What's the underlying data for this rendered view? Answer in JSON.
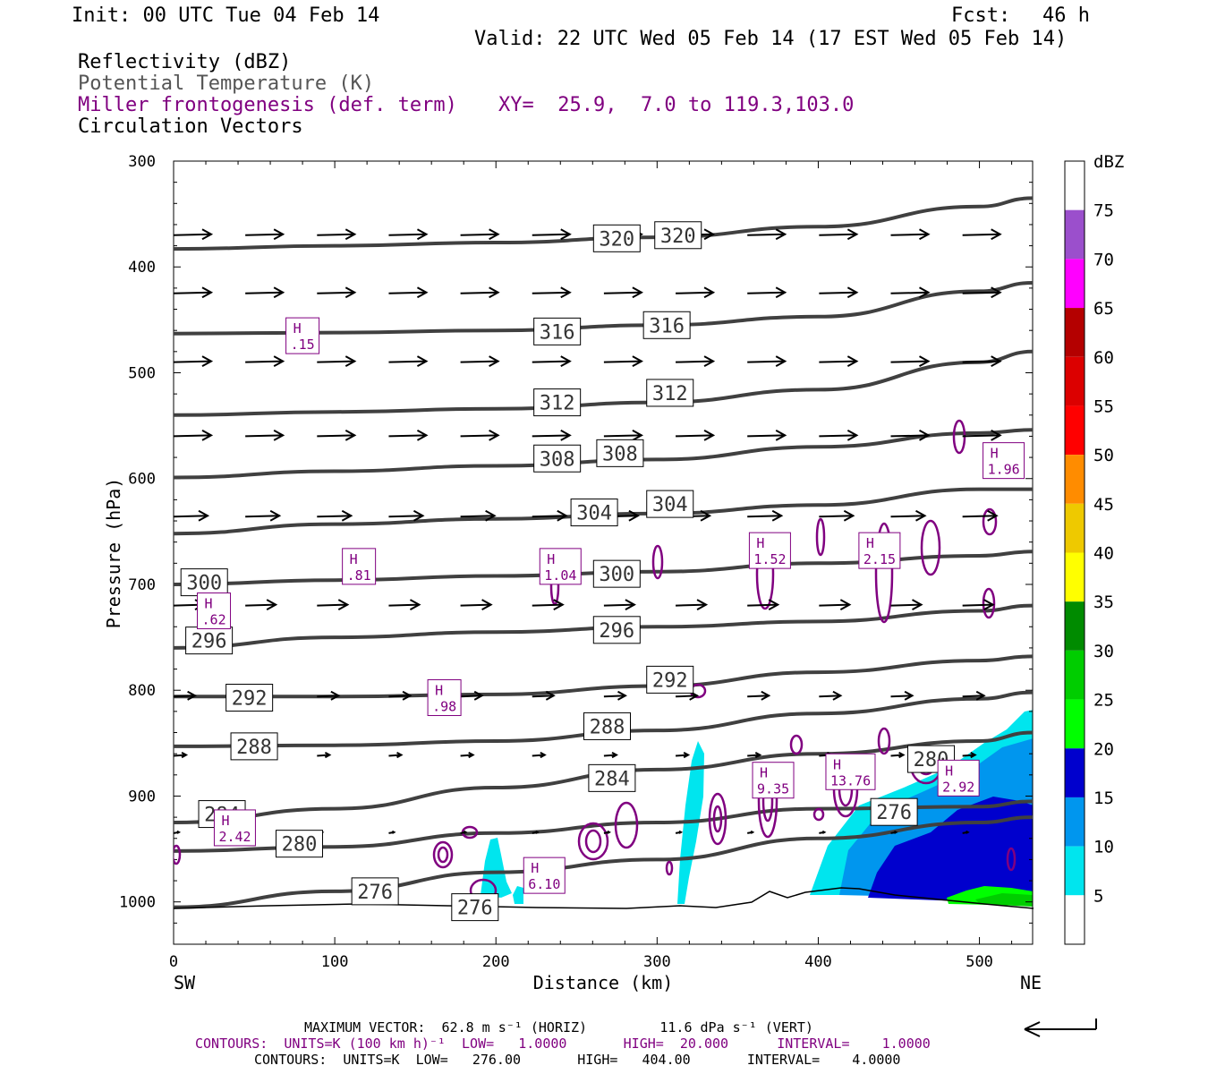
{
  "header": {
    "init": "Init: 00 UTC Tue 04 Feb 14",
    "fcst_label": "Fcst:",
    "fcst_value": "46 h",
    "valid": "Valid: 22 UTC Wed 05 Feb 14 (17 EST Wed 05 Feb 14)"
  },
  "fields": {
    "reflectivity": "Reflectivity (dBZ)",
    "theta": "Potential Temperature (K)",
    "miller": "Miller frontogenesis (def. term)",
    "xy": "XY=  25.9,  7.0 to 119.3,103.0",
    "vectors": "Circulation Vectors"
  },
  "colors": {
    "theta": "#404040",
    "miller": "#800080",
    "vectors": "#000000"
  },
  "chart_data": {
    "type": "cross-section",
    "xlabel": "Distance (km)",
    "ylabel": "Pressure (hPa)",
    "xlim": [
      0,
      533
    ],
    "ylim": [
      1040,
      300
    ],
    "xticks": [
      0,
      100,
      200,
      300,
      400,
      500
    ],
    "yticks": [
      300,
      400,
      500,
      600,
      700,
      800,
      900,
      1000
    ],
    "x_end_labels": {
      "left": "SW",
      "right": "NE"
    },
    "colorbar": {
      "title": "dBZ",
      "levels": [
        5,
        10,
        15,
        20,
        25,
        30,
        35,
        40,
        45,
        50,
        55,
        60,
        65,
        70,
        75
      ],
      "colors": [
        "#ffffff",
        "#00e5ee",
        "#0096ee",
        "#0000cd",
        "#00ff00",
        "#00cd00",
        "#008b00",
        "#ffff00",
        "#eec900",
        "#ff8c00",
        "#ff0000",
        "#dc0000",
        "#b40000",
        "#ff00ff",
        "#9b4fcc",
        "#ffffff"
      ]
    },
    "theta_lines": [
      {
        "label": "320",
        "pts": [
          [
            0,
            383
          ],
          [
            100,
            380
          ],
          [
            200,
            377
          ],
          [
            300,
            372
          ],
          [
            400,
            362
          ],
          [
            500,
            343
          ],
          [
            533,
            335
          ]
        ]
      },
      {
        "label": "316",
        "pts": [
          [
            0,
            463
          ],
          [
            100,
            462
          ],
          [
            200,
            460
          ],
          [
            300,
            455
          ],
          [
            400,
            447
          ],
          [
            500,
            423
          ],
          [
            533,
            415
          ]
        ]
      },
      {
        "label": "312",
        "pts": [
          [
            0,
            540
          ],
          [
            100,
            537
          ],
          [
            200,
            534
          ],
          [
            300,
            528
          ],
          [
            400,
            516
          ],
          [
            500,
            490
          ],
          [
            533,
            480
          ]
        ]
      },
      {
        "label": "308",
        "pts": [
          [
            0,
            599
          ],
          [
            100,
            593
          ],
          [
            200,
            588
          ],
          [
            300,
            582
          ],
          [
            400,
            570
          ],
          [
            500,
            557
          ],
          [
            533,
            554
          ]
        ]
      },
      {
        "label": "304",
        "pts": [
          [
            0,
            652
          ],
          [
            100,
            643
          ],
          [
            200,
            638
          ],
          [
            300,
            633
          ],
          [
            400,
            625
          ],
          [
            500,
            610
          ],
          [
            533,
            610
          ]
        ]
      },
      {
        "label": "300",
        "pts": [
          [
            0,
            700
          ],
          [
            100,
            696
          ],
          [
            200,
            692
          ],
          [
            300,
            688
          ],
          [
            400,
            680
          ],
          [
            500,
            673
          ],
          [
            533,
            669
          ]
        ]
      },
      {
        "label": "296",
        "pts": [
          [
            0,
            760
          ],
          [
            100,
            750
          ],
          [
            200,
            745
          ],
          [
            300,
            740
          ],
          [
            400,
            735
          ],
          [
            500,
            725
          ],
          [
            533,
            720
          ]
        ]
      },
      {
        "label": "292",
        "pts": [
          [
            0,
            806
          ],
          [
            100,
            806
          ],
          [
            200,
            804
          ],
          [
            300,
            796
          ],
          [
            400,
            783
          ],
          [
            500,
            772
          ],
          [
            533,
            768
          ]
        ]
      },
      {
        "label": "288",
        "pts": [
          [
            0,
            853
          ],
          [
            100,
            852
          ],
          [
            200,
            848
          ],
          [
            300,
            838
          ],
          [
            400,
            822
          ],
          [
            500,
            808
          ],
          [
            533,
            802
          ]
        ]
      },
      {
        "label": "284",
        "pts": [
          [
            0,
            925
          ],
          [
            100,
            912
          ],
          [
            200,
            892
          ],
          [
            300,
            875
          ],
          [
            400,
            860
          ],
          [
            500,
            848
          ],
          [
            533,
            840
          ]
        ]
      },
      {
        "label": "280",
        "pts": [
          [
            0,
            952
          ],
          [
            100,
            948
          ],
          [
            200,
            935
          ],
          [
            300,
            925
          ],
          [
            400,
            912
          ],
          [
            500,
            910
          ],
          [
            533,
            905
          ]
        ]
      },
      {
        "label": "276",
        "pts": [
          [
            0,
            1005
          ],
          [
            100,
            990
          ],
          [
            200,
            972
          ],
          [
            300,
            960
          ],
          [
            400,
            940
          ],
          [
            500,
            925
          ],
          [
            533,
            920
          ]
        ]
      }
    ],
    "theta_labels": [
      {
        "text": "320",
        "x": 275,
        "p": 373
      },
      {
        "text": "320",
        "x": 313,
        "p": 370
      },
      {
        "text": "316",
        "x": 238,
        "p": 461
      },
      {
        "text": "316",
        "x": 306,
        "p": 455
      },
      {
        "text": "312",
        "x": 238,
        "p": 528
      },
      {
        "text": "312",
        "x": 308,
        "p": 519
      },
      {
        "text": "308",
        "x": 238,
        "p": 581
      },
      {
        "text": "308",
        "x": 277,
        "p": 576
      },
      {
        "text": "304",
        "x": 261,
        "p": 632
      },
      {
        "text": "304",
        "x": 308,
        "p": 624
      },
      {
        "text": "300",
        "x": 19,
        "p": 698
      },
      {
        "text": "300",
        "x": 275,
        "p": 690
      },
      {
        "text": "296",
        "x": 22,
        "p": 753
      },
      {
        "text": "296",
        "x": 275,
        "p": 743
      },
      {
        "text": "292",
        "x": 47,
        "p": 807
      },
      {
        "text": "292",
        "x": 308,
        "p": 790
      },
      {
        "text": "288",
        "x": 50,
        "p": 853
      },
      {
        "text": "288",
        "x": 269,
        "p": 834
      },
      {
        "text": "284",
        "x": 30,
        "p": 917
      },
      {
        "text": "284",
        "x": 272,
        "p": 883
      },
      {
        "text": "280",
        "x": 78,
        "p": 945
      },
      {
        "text": "276",
        "x": 125,
        "p": 990
      },
      {
        "text": "276",
        "x": 187,
        "p": 1005
      },
      {
        "text": "276",
        "x": 447,
        "p": 915
      },
      {
        "text": "280",
        "x": 470,
        "p": 865
      }
    ],
    "frontogenesis_maxima": [
      {
        "text": "H",
        "value": ".15",
        "x": 80,
        "p": 465
      },
      {
        "text": "H",
        "value": ".81",
        "x": 115,
        "p": 683
      },
      {
        "text": "H",
        "value": "1.04",
        "x": 240,
        "p": 683
      },
      {
        "text": "H",
        "value": "1.52",
        "x": 370,
        "p": 668
      },
      {
        "text": "H",
        "value": "2.15",
        "x": 438,
        "p": 668
      },
      {
        "text": "H",
        "value": ".62",
        "x": 25,
        "p": 725
      },
      {
        "text": "H",
        "value": ".98",
        "x": 168,
        "p": 807
      },
      {
        "text": "H",
        "value": "1.96",
        "x": 515,
        "p": 583
      },
      {
        "text": "H",
        "value": "9.35",
        "x": 372,
        "p": 885
      },
      {
        "text": "H",
        "value": "13.76",
        "x": 420,
        "p": 877
      },
      {
        "text": "H",
        "value": "2.92",
        "x": 487,
        "p": 883
      },
      {
        "text": "H",
        "value": "2.42",
        "x": 38,
        "p": 930
      },
      {
        "text": "H",
        "value": "6.10",
        "x": 230,
        "p": 975
      }
    ],
    "vector_rows": [
      {
        "p": 370,
        "len": 42
      },
      {
        "p": 425,
        "len": 42
      },
      {
        "p": 490,
        "len": 42
      },
      {
        "p": 560,
        "len": 42
      },
      {
        "p": 636,
        "len": 38
      },
      {
        "p": 720,
        "len": 34
      },
      {
        "p": 806,
        "len": 24
      },
      {
        "p": 862,
        "len": 14
      },
      {
        "p": 935,
        "len": 6
      }
    ]
  },
  "footer": {
    "line1": "MAXIMUM VECTOR:  62.8 m s⁻¹ (HORIZ)         11.6 dPa s⁻¹ (VERT)",
    "line2": "CONTOURS:  UNITS=K (100 km h)⁻¹  LOW=   1.0000       HIGH=  20.000      INTERVAL=    1.0000",
    "line3": "CONTOURS:  UNITS=K  LOW=   276.00       HIGH=   404.00       INTERVAL=    4.0000"
  }
}
